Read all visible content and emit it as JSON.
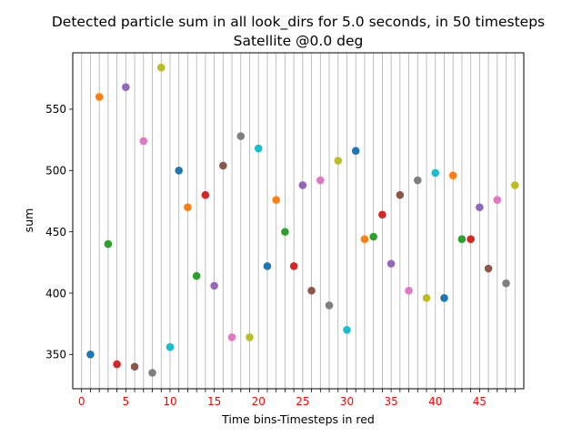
{
  "chart_data": {
    "type": "scatter",
    "title_line1": "Detected particle sum in all look_dirs for 5.0 seconds, in 50 timesteps",
    "title_line2": "Satellite @0.0 deg",
    "xlabel": "Time bins-Timesteps in red",
    "ylabel": "sum",
    "xlim": [
      -1,
      50
    ],
    "ylim": [
      322,
      596
    ],
    "x_tick_labels": [
      "0",
      "5",
      "10",
      "15",
      "20",
      "25",
      "30",
      "35",
      "40",
      "45"
    ],
    "x_tick_label_color": "#ff0000",
    "y_ticks": [
      350,
      400,
      450,
      500,
      550
    ],
    "grid_x": "vertical lines at every integer x from 0 to 49",
    "colors": [
      "#1f77b4",
      "#ff7f0e",
      "#2ca02c",
      "#d62728",
      "#9467bd",
      "#8c564b",
      "#e377c2",
      "#7f7f7f",
      "#bcbd22",
      "#17becf"
    ],
    "x": [
      1,
      2,
      3,
      4,
      5,
      6,
      7,
      8,
      9,
      10,
      11,
      12,
      13,
      14,
      15,
      16,
      17,
      18,
      19,
      20,
      21,
      22,
      23,
      24,
      25,
      26,
      27,
      28,
      29,
      30,
      31,
      32,
      33,
      34,
      35,
      36,
      37,
      38,
      39,
      40,
      41,
      42,
      43,
      44,
      45,
      46,
      47,
      48,
      49
    ],
    "y": [
      350,
      560,
      440,
      342,
      568,
      340,
      524,
      335,
      584,
      356,
      500,
      470,
      414,
      480,
      406,
      504,
      364,
      528,
      364,
      518,
      422,
      476,
      450,
      422,
      488,
      402,
      492,
      390,
      508,
      370,
      516,
      444,
      446,
      464,
      424,
      480,
      402,
      492,
      396,
      498,
      396,
      496,
      444,
      444,
      470,
      420,
      476,
      408,
      488
    ]
  }
}
